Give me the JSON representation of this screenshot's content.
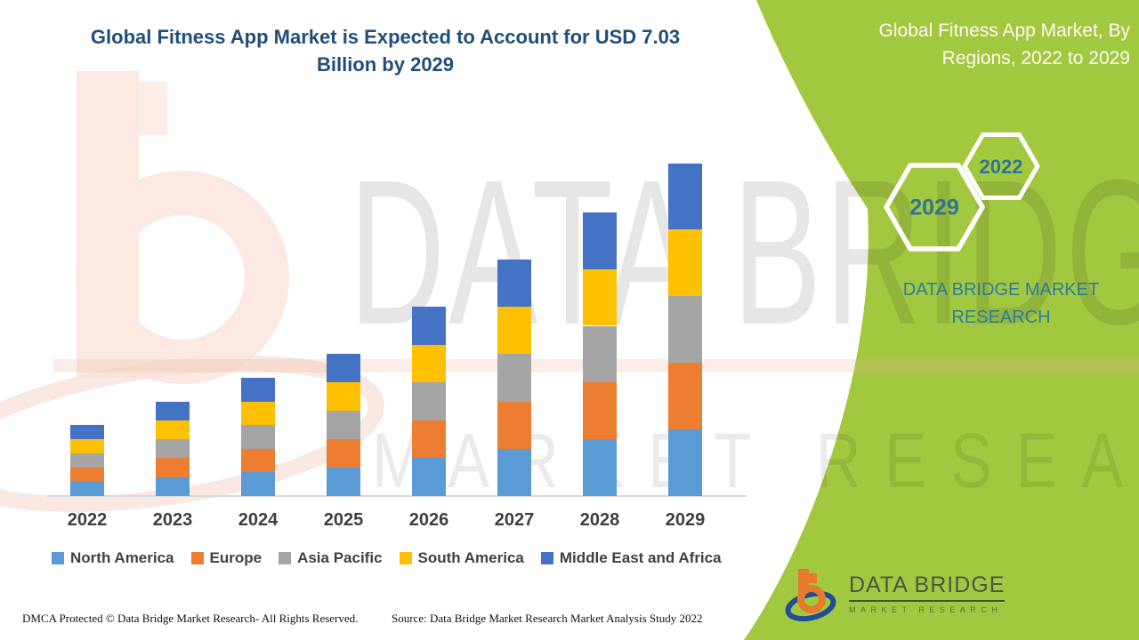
{
  "title": {
    "line1": "Global Fitness App Market is Expected to Account for USD 7.03",
    "line2": "Billion by 2029",
    "full": "Global Fitness App Market is Expected to Account for USD 7.03 Billion by 2029"
  },
  "side_panel": {
    "title_line1": "Global Fitness App Market, By",
    "title_line2": "Regions, 2022 to 2029",
    "hexagons": [
      {
        "label": "2029"
      },
      {
        "label": "2022"
      }
    ],
    "caption_line1": "DATA BRIDGE MARKET",
    "caption_line2": "RESEARCH",
    "accent_green": "#A2C840",
    "text_teal": "#2C7B9E"
  },
  "chart_data": {
    "type": "bar",
    "stacked": true,
    "title": "Global Fitness App Market, By Regions, 2022 to 2029",
    "unit": "USD Billion",
    "categories": [
      "2022",
      "2023",
      "2024",
      "2025",
      "2026",
      "2027",
      "2028",
      "2029"
    ],
    "series": [
      {
        "name": "North America",
        "color": "#5B9BD5",
        "values": [
          0.3,
          0.4,
          0.5,
          0.6,
          0.8,
          1.0,
          1.2,
          1.41
        ]
      },
      {
        "name": "Europe",
        "color": "#ED7D31",
        "values": [
          0.3,
          0.4,
          0.5,
          0.6,
          0.8,
          1.0,
          1.2,
          1.41
        ]
      },
      {
        "name": "Asia Pacific",
        "color": "#A5A5A5",
        "values": [
          0.3,
          0.4,
          0.5,
          0.6,
          0.8,
          1.0,
          1.2,
          1.41
        ]
      },
      {
        "name": "South America",
        "color": "#FFC000",
        "values": [
          0.3,
          0.4,
          0.5,
          0.6,
          0.8,
          1.0,
          1.2,
          1.41
        ]
      },
      {
        "name": "Middle East and Africa",
        "color": "#4472C4",
        "values": [
          0.3,
          0.4,
          0.5,
          0.6,
          0.8,
          1.0,
          1.2,
          1.39
        ]
      }
    ],
    "totals": [
      1.5,
      2.0,
      2.5,
      3.0,
      4.0,
      5.0,
      6.0,
      7.03
    ],
    "highlighted_value": "USD 7.03 Billion by 2029",
    "ylim": [
      0,
      7.5
    ],
    "gridlines": false,
    "y_axis_visible": false,
    "legend_position": "bottom"
  },
  "watermark": {
    "line1": "DATA BRIDGE",
    "line2": "MARKET RESEARCH"
  },
  "footer": {
    "dmca": "DMCA Protected © Data Bridge Market Research- All Rights Reserved.",
    "source": "Source: Data Bridge Market Research Market Analysis Study 2022"
  },
  "logo": {
    "brand": "DATA BRIDGE",
    "subtitle": "MARKET RESEARCH"
  }
}
